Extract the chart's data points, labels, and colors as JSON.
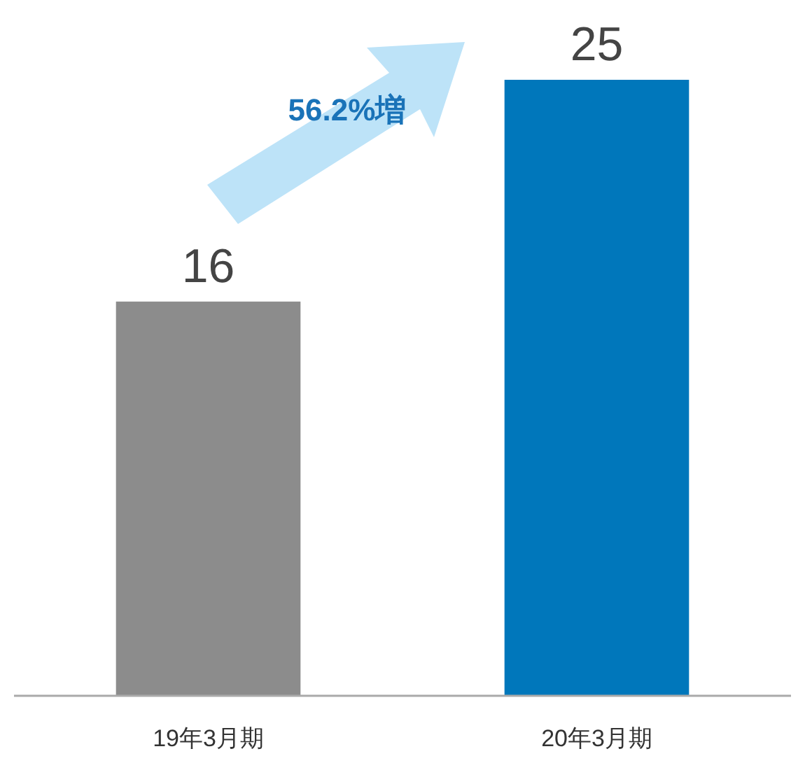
{
  "chart_data": {
    "type": "bar",
    "categories": [
      "19年3月期",
      "20年3月期"
    ],
    "values": [
      16,
      25
    ],
    "colors": [
      "#8c8c8c",
      "#0077bb"
    ],
    "data_labels": true,
    "annotations": [
      "56.2%増"
    ]
  }
}
